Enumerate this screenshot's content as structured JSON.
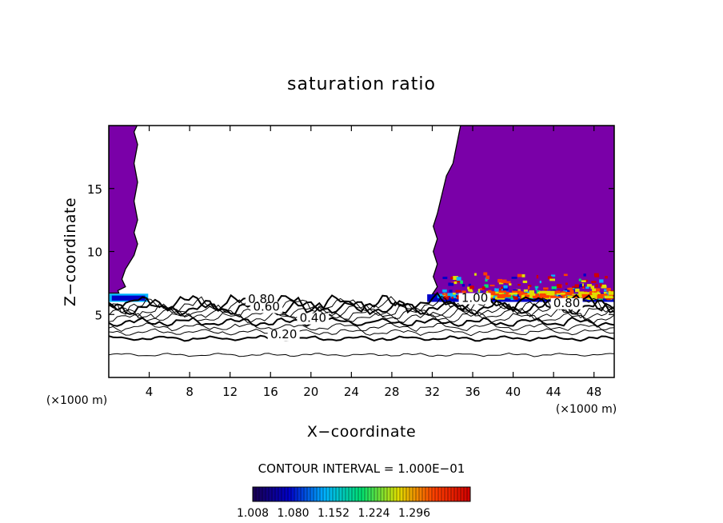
{
  "chart_data": {
    "type": "contour",
    "title": "saturation ratio",
    "xlabel": "X−coordinate",
    "ylabel": "Z−coordinate",
    "x_units": "(×1000 m)",
    "xlim": [
      0,
      50
    ],
    "ylim": [
      0,
      20
    ],
    "x_ticks": [
      4,
      8,
      12,
      16,
      20,
      24,
      28,
      32,
      36,
      40,
      44,
      48
    ],
    "y_ticks": [
      5,
      10,
      15
    ],
    "contour_interval_text": "CONTOUR INTERVAL = 1.000E−01",
    "contour_labels": [
      {
        "text": "0.20",
        "x": 17.3,
        "y": 3.1
      },
      {
        "text": "0.40",
        "x": 20.2,
        "y": 4.4
      },
      {
        "text": "0.80",
        "x": 15.1,
        "y": 5.9
      },
      {
        "text": "0.60",
        "x": 15.6,
        "y": 5.3
      },
      {
        "text": "1.00",
        "x": 36.2,
        "y": 6.0
      },
      {
        "text": "0.80",
        "x": 45.3,
        "y": 5.6
      }
    ],
    "contour_lines_z": [
      1.8,
      3.1,
      3.6,
      4.0,
      4.4,
      4.75,
      5.05,
      5.3,
      5.55,
      5.75,
      5.92
    ],
    "shaded_colorbar": {
      "labels": [
        "1.008",
        "1.080",
        "1.152",
        "1.224",
        "1.296"
      ],
      "min": 1.0,
      "max": 1.33,
      "colors": [
        "#1a0050",
        "#0000c8",
        "#00b4ff",
        "#00e070",
        "#e0e000",
        "#ff4000",
        "#d00000"
      ]
    },
    "fill_color": "#7a00a8",
    "left_region_x_end": 2.6,
    "right_region_x_start": 32.0,
    "supersat_z_base": 6.3
  }
}
